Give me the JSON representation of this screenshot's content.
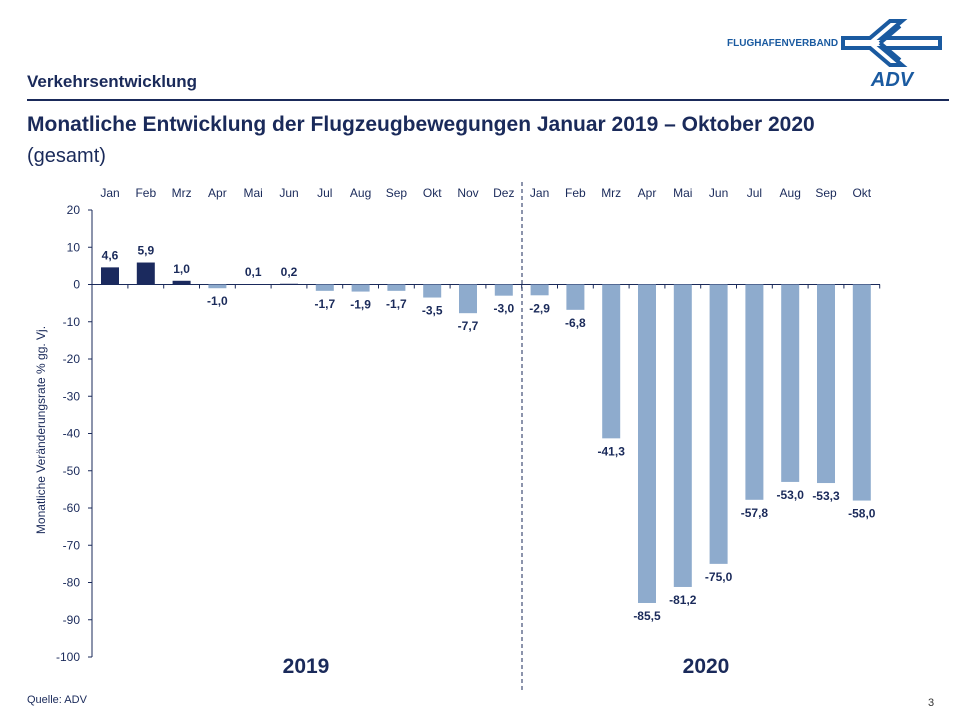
{
  "header": {
    "section": "Verkehrsentwicklung",
    "title": "Monatliche Entwicklung der Flugzeugbewegungen Januar 2019 – Oktober 2020",
    "subtitle": "(gesamt)",
    "logo_text": "FLUGHAFENVERBAND",
    "logo_mark": "ADV"
  },
  "footer": {
    "source": "Quelle: ADV",
    "page": "3"
  },
  "colors": {
    "positive": "#1b2a5e",
    "negative": "#8eabcd",
    "text": "#1a2a5a"
  },
  "chart_data": {
    "type": "bar",
    "ylabel": "Monatliche Veränderungsrate % gg. Vj.",
    "ylim": [
      -100,
      20
    ],
    "yticks": [
      20,
      10,
      0,
      -10,
      -20,
      -30,
      -40,
      -50,
      -60,
      -70,
      -80,
      -90,
      -100
    ],
    "categories": [
      "Jan",
      "Feb",
      "Mrz",
      "Apr",
      "Mai",
      "Jun",
      "Jul",
      "Aug",
      "Sep",
      "Okt",
      "Nov",
      "Dez",
      "Jan",
      "Feb",
      "Mrz",
      "Apr",
      "Mai",
      "Jun",
      "Jul",
      "Aug",
      "Sep",
      "Okt"
    ],
    "values": [
      4.6,
      5.9,
      1.0,
      -1.0,
      0.1,
      0.2,
      -1.7,
      -1.9,
      -1.7,
      -3.5,
      -7.7,
      -3.0,
      -2.9,
      -6.8,
      -41.3,
      -85.5,
      -81.2,
      -75.0,
      -57.8,
      -53.0,
      -53.3,
      -58.0
    ],
    "labels": [
      "4,6",
      "5,9",
      "1,0",
      "-1,0",
      "0,1",
      "0,2",
      "-1,7",
      "-1,9",
      "-1,7",
      "-3,5",
      "-7,7",
      "-3,0",
      "-2,9",
      "-6,8",
      "-41,3",
      "-85,5",
      "-81,2",
      "-75,0",
      "-57,8",
      "-53,0",
      "-53,3",
      "-58,0"
    ],
    "groups": [
      "2019",
      "2020"
    ],
    "grid": false
  }
}
